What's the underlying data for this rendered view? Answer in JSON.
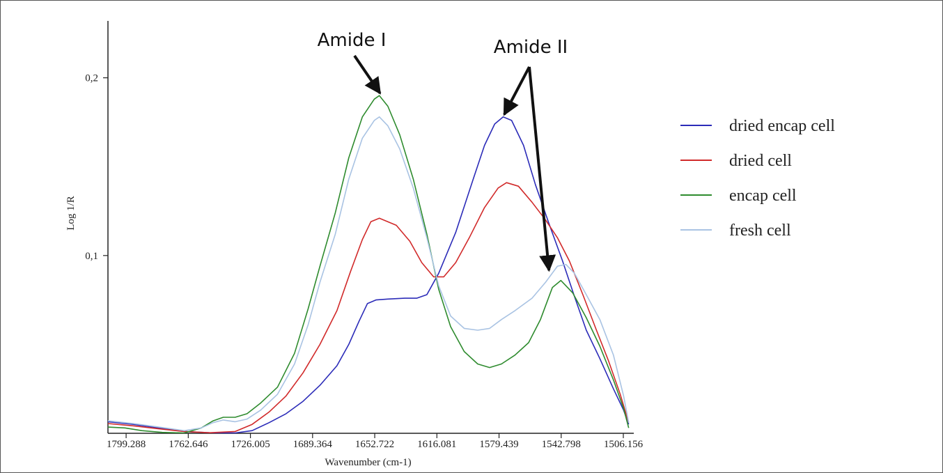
{
  "chart_data": {
    "type": "line",
    "title": "",
    "xlabel": "Wavenumber (cm-1)",
    "ylabel": "Log 1/R",
    "x_reversed": true,
    "xlim": [
      1810,
      1500
    ],
    "ylim": [
      0.0,
      0.232
    ],
    "x_ticks": [
      {
        "value": 1799.288,
        "label": "1799.288"
      },
      {
        "value": 1762.646,
        "label": "1762.646"
      },
      {
        "value": 1726.005,
        "label": "1726.005"
      },
      {
        "value": 1689.364,
        "label": "1689.364"
      },
      {
        "value": 1652.722,
        "label": "1652.722"
      },
      {
        "value": 1616.081,
        "label": "1616.081"
      },
      {
        "value": 1579.439,
        "label": "1579.439"
      },
      {
        "value": 1542.798,
        "label": "1542.798"
      },
      {
        "value": 1506.156,
        "label": "1506.156"
      }
    ],
    "y_ticks": [
      {
        "value": 0.1,
        "label": "0,1"
      },
      {
        "value": 0.2,
        "label": "0,2"
      }
    ],
    "grid": false,
    "legend_position": "right",
    "series": [
      {
        "name": "dried encap cell",
        "color": "#2b2bb8",
        "points": [
          [
            1810,
            0.0065
          ],
          [
            1795,
            0.005
          ],
          [
            1780,
            0.003
          ],
          [
            1765,
            0.001
          ],
          [
            1750,
            0.0003
          ],
          [
            1735,
            0.0002
          ],
          [
            1725,
            0.0015
          ],
          [
            1715,
            0.006
          ],
          [
            1705,
            0.011
          ],
          [
            1695,
            0.018
          ],
          [
            1685,
            0.027
          ],
          [
            1675,
            0.038
          ],
          [
            1668,
            0.05
          ],
          [
            1662,
            0.063
          ],
          [
            1657,
            0.073
          ],
          [
            1652,
            0.075
          ],
          [
            1645,
            0.0755
          ],
          [
            1635,
            0.076
          ],
          [
            1628,
            0.076
          ],
          [
            1622,
            0.078
          ],
          [
            1615,
            0.09
          ],
          [
            1605,
            0.113
          ],
          [
            1595,
            0.142
          ],
          [
            1588,
            0.162
          ],
          [
            1582,
            0.174
          ],
          [
            1577,
            0.178
          ],
          [
            1572,
            0.176
          ],
          [
            1565,
            0.162
          ],
          [
            1558,
            0.14
          ],
          [
            1550,
            0.118
          ],
          [
            1542,
            0.097
          ],
          [
            1535,
            0.077
          ],
          [
            1528,
            0.058
          ],
          [
            1520,
            0.042
          ],
          [
            1512,
            0.025
          ],
          [
            1506,
            0.013
          ],
          [
            1503,
            0.005
          ]
        ]
      },
      {
        "name": "dried cell",
        "color": "#d12a2a",
        "points": [
          [
            1810,
            0.0055
          ],
          [
            1795,
            0.0042
          ],
          [
            1780,
            0.0025
          ],
          [
            1765,
            0.001
          ],
          [
            1750,
            0.0003
          ],
          [
            1735,
            0.001
          ],
          [
            1725,
            0.005
          ],
          [
            1715,
            0.012
          ],
          [
            1705,
            0.021
          ],
          [
            1695,
            0.034
          ],
          [
            1685,
            0.05
          ],
          [
            1675,
            0.069
          ],
          [
            1667,
            0.091
          ],
          [
            1660,
            0.109
          ],
          [
            1655,
            0.119
          ],
          [
            1650,
            0.121
          ],
          [
            1640,
            0.117
          ],
          [
            1632,
            0.108
          ],
          [
            1625,
            0.096
          ],
          [
            1618,
            0.088
          ],
          [
            1612,
            0.088
          ],
          [
            1605,
            0.096
          ],
          [
            1597,
            0.11
          ],
          [
            1588,
            0.127
          ],
          [
            1580,
            0.138
          ],
          [
            1575,
            0.141
          ],
          [
            1568,
            0.139
          ],
          [
            1560,
            0.13
          ],
          [
            1552,
            0.12
          ],
          [
            1545,
            0.11
          ],
          [
            1538,
            0.097
          ],
          [
            1530,
            0.078
          ],
          [
            1522,
            0.058
          ],
          [
            1515,
            0.041
          ],
          [
            1508,
            0.022
          ],
          [
            1503,
            0.006
          ]
        ]
      },
      {
        "name": "encap cell",
        "color": "#2e8b2e",
        "points": [
          [
            1810,
            0.0035
          ],
          [
            1800,
            0.003
          ],
          [
            1790,
            0.0015
          ],
          [
            1778,
            0.0005
          ],
          [
            1765,
            0.0002
          ],
          [
            1755,
            0.003
          ],
          [
            1748,
            0.007
          ],
          [
            1742,
            0.009
          ],
          [
            1735,
            0.009
          ],
          [
            1728,
            0.011
          ],
          [
            1720,
            0.017
          ],
          [
            1710,
            0.026
          ],
          [
            1700,
            0.045
          ],
          [
            1692,
            0.07
          ],
          [
            1685,
            0.094
          ],
          [
            1676,
            0.124
          ],
          [
            1668,
            0.155
          ],
          [
            1660,
            0.178
          ],
          [
            1653,
            0.188
          ],
          [
            1650,
            0.19
          ],
          [
            1645,
            0.184
          ],
          [
            1638,
            0.168
          ],
          [
            1630,
            0.143
          ],
          [
            1622,
            0.112
          ],
          [
            1615,
            0.081
          ],
          [
            1608,
            0.06
          ],
          [
            1600,
            0.046
          ],
          [
            1592,
            0.039
          ],
          [
            1585,
            0.037
          ],
          [
            1578,
            0.039
          ],
          [
            1570,
            0.044
          ],
          [
            1562,
            0.051
          ],
          [
            1555,
            0.064
          ],
          [
            1548,
            0.082
          ],
          [
            1543,
            0.086
          ],
          [
            1536,
            0.079
          ],
          [
            1528,
            0.065
          ],
          [
            1520,
            0.049
          ],
          [
            1512,
            0.03
          ],
          [
            1506,
            0.014
          ],
          [
            1503,
            0.003
          ]
        ]
      },
      {
        "name": "fresh cell",
        "color": "#a9c3e3",
        "points": [
          [
            1810,
            0.007
          ],
          [
            1795,
            0.0055
          ],
          [
            1780,
            0.0035
          ],
          [
            1765,
            0.0015
          ],
          [
            1755,
            0.003
          ],
          [
            1748,
            0.006
          ],
          [
            1742,
            0.0075
          ],
          [
            1735,
            0.0065
          ],
          [
            1728,
            0.008
          ],
          [
            1720,
            0.013
          ],
          [
            1710,
            0.022
          ],
          [
            1700,
            0.039
          ],
          [
            1692,
            0.061
          ],
          [
            1685,
            0.085
          ],
          [
            1676,
            0.112
          ],
          [
            1668,
            0.143
          ],
          [
            1660,
            0.166
          ],
          [
            1653,
            0.176
          ],
          [
            1650,
            0.178
          ],
          [
            1645,
            0.173
          ],
          [
            1638,
            0.16
          ],
          [
            1630,
            0.138
          ],
          [
            1622,
            0.11
          ],
          [
            1615,
            0.083
          ],
          [
            1608,
            0.066
          ],
          [
            1600,
            0.059
          ],
          [
            1592,
            0.058
          ],
          [
            1585,
            0.059
          ],
          [
            1578,
            0.064
          ],
          [
            1570,
            0.069
          ],
          [
            1560,
            0.076
          ],
          [
            1552,
            0.085
          ],
          [
            1545,
            0.094
          ],
          [
            1540,
            0.095
          ],
          [
            1535,
            0.09
          ],
          [
            1528,
            0.078
          ],
          [
            1520,
            0.064
          ],
          [
            1512,
            0.044
          ],
          [
            1506,
            0.021
          ],
          [
            1503,
            0.006
          ]
        ]
      }
    ],
    "annotations": [
      {
        "text": "Amide I",
        "target": [
          1650,
          0.189
        ]
      },
      {
        "text": "Amide II",
        "targets": [
          [
            1578,
            0.177
          ],
          [
            1550,
            0.087
          ]
        ]
      }
    ]
  }
}
